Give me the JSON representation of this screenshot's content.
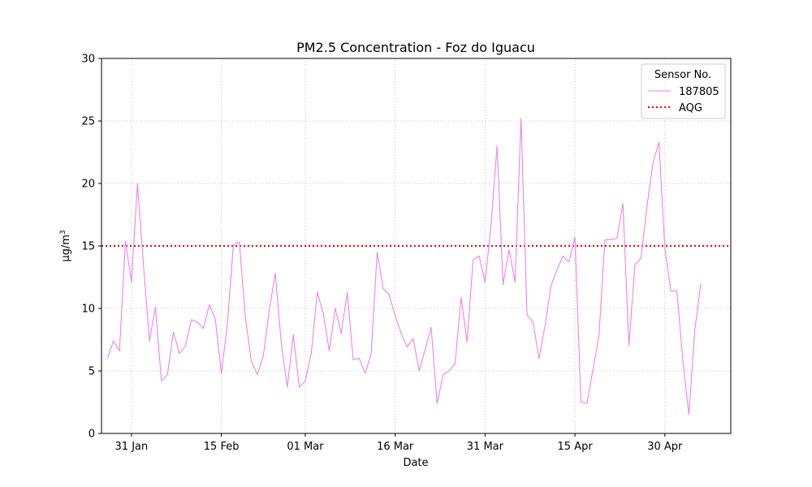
{
  "chart_data": {
    "type": "line",
    "title": "PM2.5 Concentration - Foz do Iguacu",
    "xlabel": "Date",
    "ylabel": "μg/m",
    "ylabel_superscript": "3",
    "ylim": [
      0,
      30
    ],
    "yticks": [
      0,
      5,
      10,
      15,
      20,
      25,
      30
    ],
    "xlim": [
      "2023-01-26",
      "2023-05-11"
    ],
    "xticks": [
      {
        "date": "2023-01-31",
        "label": "31 Jan"
      },
      {
        "date": "2023-02-15",
        "label": "15 Feb"
      },
      {
        "date": "2023-03-01",
        "label": "01 Mar"
      },
      {
        "date": "2023-03-16",
        "label": "16 Mar"
      },
      {
        "date": "2023-03-31",
        "label": "31 Mar"
      },
      {
        "date": "2023-04-15",
        "label": "15 Apr"
      },
      {
        "date": "2023-04-30",
        "label": "30 Apr"
      }
    ],
    "grid": true,
    "legend": {
      "title": "Sensor No.",
      "placement": "top-right"
    },
    "series": [
      {
        "name": "187805",
        "color": "#ee82ee",
        "x": [
          "2023-01-27",
          "2023-01-28",
          "2023-01-29",
          "2023-01-30",
          "2023-01-31",
          "2023-02-01",
          "2023-02-02",
          "2023-02-03",
          "2023-02-04",
          "2023-02-05",
          "2023-02-06",
          "2023-02-07",
          "2023-02-08",
          "2023-02-09",
          "2023-02-10",
          "2023-02-11",
          "2023-02-12",
          "2023-02-13",
          "2023-02-14",
          "2023-02-15",
          "2023-02-16",
          "2023-02-17",
          "2023-02-18",
          "2023-02-19",
          "2023-02-20",
          "2023-02-21",
          "2023-02-22",
          "2023-02-23",
          "2023-02-24",
          "2023-02-25",
          "2023-02-26",
          "2023-02-27",
          "2023-02-28",
          "2023-03-01",
          "2023-03-02",
          "2023-03-03",
          "2023-03-04",
          "2023-03-05",
          "2023-03-06",
          "2023-03-07",
          "2023-03-08",
          "2023-03-09",
          "2023-03-10",
          "2023-03-11",
          "2023-03-12",
          "2023-03-13",
          "2023-03-14",
          "2023-03-15",
          "2023-03-16",
          "2023-03-17",
          "2023-03-18",
          "2023-03-19",
          "2023-03-20",
          "2023-03-21",
          "2023-03-22",
          "2023-03-23",
          "2023-03-24",
          "2023-03-25",
          "2023-03-26",
          "2023-03-27",
          "2023-03-28",
          "2023-03-29",
          "2023-03-30",
          "2023-03-31",
          "2023-04-01",
          "2023-04-02",
          "2023-04-03",
          "2023-04-04",
          "2023-04-05",
          "2023-04-06",
          "2023-04-07",
          "2023-04-08",
          "2023-04-09",
          "2023-04-10",
          "2023-04-11",
          "2023-04-12",
          "2023-04-13",
          "2023-04-14",
          "2023-04-15",
          "2023-04-16",
          "2023-04-17",
          "2023-04-18",
          "2023-04-19",
          "2023-04-20",
          "2023-04-21",
          "2023-04-22",
          "2023-04-23",
          "2023-04-24",
          "2023-04-25",
          "2023-04-26",
          "2023-04-27",
          "2023-04-28",
          "2023-04-29",
          "2023-04-30",
          "2023-05-01",
          "2023-05-02",
          "2023-05-03",
          "2023-05-04",
          "2023-05-05",
          "2023-05-06"
        ],
        "values": [
          6.0,
          7.4,
          6.6,
          15.4,
          12.1,
          20.0,
          13.5,
          7.4,
          10.1,
          4.2,
          4.7,
          8.1,
          6.4,
          7.0,
          9.1,
          8.9,
          8.4,
          10.3,
          9.1,
          4.8,
          8.7,
          15.1,
          15.3,
          9.3,
          5.8,
          4.7,
          6.2,
          9.9,
          12.8,
          7.2,
          3.7,
          7.9,
          3.7,
          4.2,
          6.4,
          11.3,
          9.6,
          6.6,
          10.0,
          8.0,
          11.3,
          5.9,
          6.0,
          4.8,
          6.4,
          14.5,
          11.6,
          11.1,
          9.4,
          8.0,
          6.9,
          7.6,
          5.0,
          6.7,
          8.5,
          2.4,
          4.7,
          5.0,
          5.6,
          10.9,
          7.3,
          13.9,
          14.2,
          12.1,
          16.7,
          23.0,
          11.9,
          14.7,
          12.1,
          25.2,
          9.5,
          8.9,
          6.0,
          8.6,
          11.8,
          13.1,
          14.2,
          13.7,
          15.7,
          2.5,
          2.4,
          5.1,
          7.8,
          15.5,
          15.5,
          15.6,
          18.4,
          7.0,
          13.5,
          14.0,
          18.1,
          21.6,
          23.3,
          14.8,
          11.4,
          11.4,
          5.9,
          1.5,
          8.3,
          12.0
        ]
      },
      {
        "name": "AQG",
        "color": "#ff0000",
        "style": "dotted",
        "y": 15
      }
    ]
  }
}
